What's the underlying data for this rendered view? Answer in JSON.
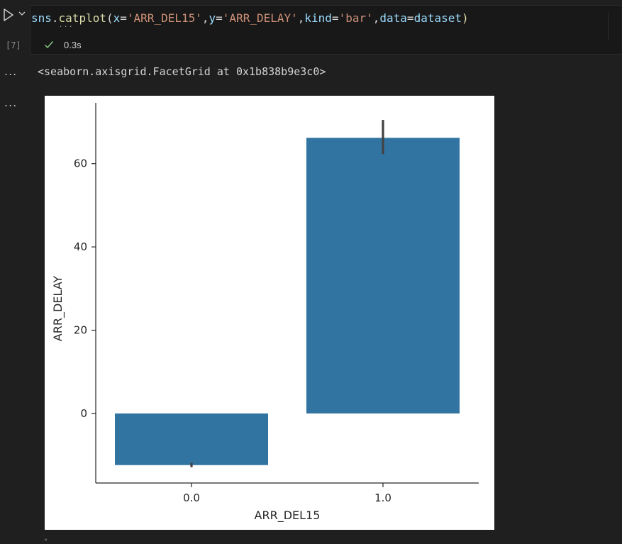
{
  "cell": {
    "execution_count": "[7]",
    "code": {
      "object": "sns",
      "dot": ".",
      "function": "catplot",
      "open": "(",
      "p1_name": "x",
      "eq": "=",
      "p1_value": "'ARR_DEL15'",
      "comma": ",",
      "p2_name": "y",
      "p2_value": "'ARR_DELAY'",
      "p3_name": "kind",
      "p3_value": "'bar'",
      "p4_name": "data",
      "p4_value": "dataset",
      "close": ")"
    },
    "status": {
      "icon": "check-icon",
      "time": "0.3s",
      "color": "#89d185"
    },
    "more_actions": "..."
  },
  "output": {
    "more_actions": "...",
    "repr_text": "<seaborn.axisgrid.FacetGrid at 0x1b838b9e3c0>",
    "plot_more_actions": "..."
  },
  "chart_data": {
    "type": "bar",
    "categories": [
      "0.0",
      "1.0"
    ],
    "values": [
      -12.4,
      66.2
    ],
    "error_bars": [
      [
        -12.9,
        -11.9
      ],
      [
        62.3,
        70.5
      ]
    ],
    "xlabel": "ARR_DEL15",
    "ylabel": "ARR_DELAY",
    "yticks": [
      0,
      20,
      40,
      60
    ],
    "ytick_labels": [
      "0",
      "20",
      "40",
      "60"
    ],
    "ylim": [
      -16.7,
      74.6
    ],
    "grid": false,
    "bar_color": "#3274a1",
    "errorbar_color": "#424242"
  }
}
